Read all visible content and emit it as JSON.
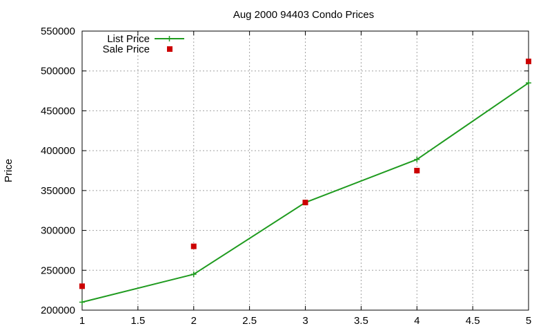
{
  "chart_data": {
    "type": "line",
    "title": "Aug 2000 94403 Condo Prices",
    "xlabel": "",
    "ylabel": "Price",
    "xlim": [
      1,
      5
    ],
    "ylim": [
      200000,
      550000
    ],
    "x_ticks": [
      1,
      1.5,
      2,
      2.5,
      3,
      3.5,
      4,
      4.5,
      5
    ],
    "x_tick_labels": [
      "1",
      "1.5",
      "2",
      "2.5",
      "3",
      "3.5",
      "4",
      "4.5",
      "5"
    ],
    "y_ticks": [
      200000,
      250000,
      300000,
      350000,
      400000,
      450000,
      500000,
      550000
    ],
    "y_tick_labels": [
      "200000",
      "250000",
      "300000",
      "350000",
      "400000",
      "450000",
      "500000",
      "550000"
    ],
    "grid": true,
    "legend_position": "top-left",
    "series": [
      {
        "name": "List Price",
        "style": "line-with-plus-markers",
        "color": "#1f9b1f",
        "x": [
          1,
          2,
          3,
          4,
          5
        ],
        "values": [
          210000,
          245000,
          335000,
          389000,
          485000
        ]
      },
      {
        "name": "Sale Price",
        "style": "square-points",
        "color": "#cc0000",
        "x": [
          1,
          2,
          3,
          4,
          5
        ],
        "values": [
          230000,
          280000,
          335000,
          375000,
          512000
        ]
      }
    ]
  }
}
